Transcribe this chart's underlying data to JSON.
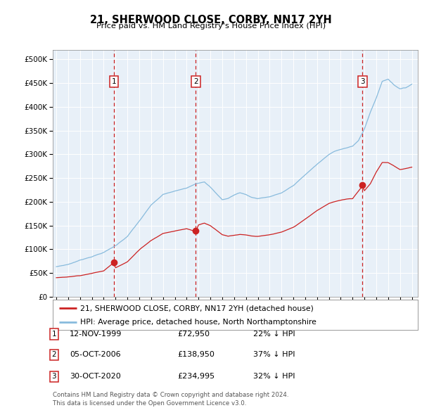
{
  "title": "21, SHERWOOD CLOSE, CORBY, NN17 2YH",
  "subtitle": "Price paid vs. HM Land Registry's House Price Index (HPI)",
  "legend_line1": "21, SHERWOOD CLOSE, CORBY, NN17 2YH (detached house)",
  "legend_line2": "HPI: Average price, detached house, North Northamptonshire",
  "footnote1": "Contains HM Land Registry data © Crown copyright and database right 2024.",
  "footnote2": "This data is licensed under the Open Government Licence v3.0.",
  "sale_color": "#cc2222",
  "hpi_color": "#88bbdd",
  "plot_bg_color": "#e8f0f8",
  "sales": [
    {
      "num": 1,
      "date_x": 1999.87,
      "price": 72950,
      "label": "12-NOV-1999",
      "price_str": "£72,950",
      "pct": "22% ↓ HPI"
    },
    {
      "num": 2,
      "date_x": 2006.77,
      "price": 138950,
      "label": "05-OCT-2006",
      "price_str": "£138,950",
      "pct": "37% ↓ HPI"
    },
    {
      "num": 3,
      "date_x": 2020.83,
      "price": 234995,
      "label": "30-OCT-2020",
      "price_str": "£234,995",
      "pct": "32% ↓ HPI"
    }
  ],
  "ylim": [
    0,
    520000
  ],
  "yticks": [
    0,
    50000,
    100000,
    150000,
    200000,
    250000,
    300000,
    350000,
    400000,
    450000,
    500000
  ],
  "xlim": [
    1994.7,
    2025.5
  ],
  "hpi_keypoints": [
    [
      1995.0,
      63000
    ],
    [
      1996.0,
      68000
    ],
    [
      1997.0,
      77000
    ],
    [
      1998.0,
      85000
    ],
    [
      1999.0,
      94000
    ],
    [
      2000.0,
      108000
    ],
    [
      2001.0,
      128000
    ],
    [
      2002.0,
      160000
    ],
    [
      2003.0,
      193000
    ],
    [
      2004.0,
      215000
    ],
    [
      2005.0,
      222000
    ],
    [
      2006.0,
      228000
    ],
    [
      2006.75,
      238000
    ],
    [
      2007.5,
      243000
    ],
    [
      2008.0,
      232000
    ],
    [
      2008.5,
      218000
    ],
    [
      2009.0,
      205000
    ],
    [
      2009.5,
      208000
    ],
    [
      2010.0,
      215000
    ],
    [
      2010.5,
      220000
    ],
    [
      2011.0,
      216000
    ],
    [
      2011.5,
      210000
    ],
    [
      2012.0,
      208000
    ],
    [
      2013.0,
      212000
    ],
    [
      2014.0,
      220000
    ],
    [
      2015.0,
      235000
    ],
    [
      2016.0,
      258000
    ],
    [
      2017.0,
      280000
    ],
    [
      2018.0,
      300000
    ],
    [
      2018.5,
      308000
    ],
    [
      2019.0,
      312000
    ],
    [
      2019.5,
      315000
    ],
    [
      2020.0,
      318000
    ],
    [
      2020.5,
      330000
    ],
    [
      2021.0,
      355000
    ],
    [
      2021.5,
      390000
    ],
    [
      2022.0,
      420000
    ],
    [
      2022.5,
      455000
    ],
    [
      2023.0,
      460000
    ],
    [
      2023.5,
      448000
    ],
    [
      2024.0,
      440000
    ],
    [
      2024.5,
      442000
    ],
    [
      2025.0,
      450000
    ]
  ],
  "sale_keypoints": [
    [
      1995.0,
      40000
    ],
    [
      1996.0,
      42000
    ],
    [
      1997.0,
      45000
    ],
    [
      1998.0,
      50000
    ],
    [
      1999.0,
      55000
    ],
    [
      1999.87,
      72950
    ],
    [
      2000.0,
      62000
    ],
    [
      2001.0,
      75000
    ],
    [
      2002.0,
      100000
    ],
    [
      2003.0,
      120000
    ],
    [
      2004.0,
      135000
    ],
    [
      2005.0,
      140000
    ],
    [
      2006.0,
      145000
    ],
    [
      2006.77,
      138950
    ],
    [
      2007.0,
      153000
    ],
    [
      2007.5,
      157000
    ],
    [
      2008.0,
      152000
    ],
    [
      2008.5,
      143000
    ],
    [
      2009.0,
      133000
    ],
    [
      2009.5,
      130000
    ],
    [
      2010.0,
      132000
    ],
    [
      2010.5,
      134000
    ],
    [
      2011.0,
      133000
    ],
    [
      2011.5,
      131000
    ],
    [
      2012.0,
      130000
    ],
    [
      2013.0,
      133000
    ],
    [
      2014.0,
      138000
    ],
    [
      2015.0,
      148000
    ],
    [
      2016.0,
      165000
    ],
    [
      2017.0,
      183000
    ],
    [
      2018.0,
      198000
    ],
    [
      2018.5,
      202000
    ],
    [
      2019.0,
      205000
    ],
    [
      2019.5,
      207000
    ],
    [
      2020.0,
      208000
    ],
    [
      2020.83,
      234995
    ],
    [
      2021.0,
      225000
    ],
    [
      2021.5,
      240000
    ],
    [
      2022.0,
      265000
    ],
    [
      2022.5,
      285000
    ],
    [
      2023.0,
      285000
    ],
    [
      2023.5,
      278000
    ],
    [
      2024.0,
      270000
    ],
    [
      2024.5,
      272000
    ],
    [
      2025.0,
      275000
    ]
  ]
}
